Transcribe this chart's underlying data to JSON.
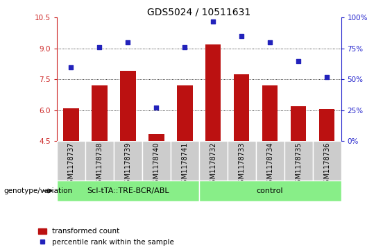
{
  "title": "GDS5024 / 10511631",
  "samples": [
    "GSM1178737",
    "GSM1178738",
    "GSM1178739",
    "GSM1178740",
    "GSM1178741",
    "GSM1178732",
    "GSM1178733",
    "GSM1178734",
    "GSM1178735",
    "GSM1178736"
  ],
  "transformed_count": [
    6.1,
    7.2,
    7.9,
    4.85,
    7.2,
    9.2,
    7.75,
    7.2,
    6.2,
    6.05
  ],
  "percentile_rank": [
    60,
    76,
    80,
    27,
    76,
    97,
    85,
    80,
    65,
    52
  ],
  "ylim_left": [
    4.5,
    10.5
  ],
  "ylim_right": [
    0,
    100
  ],
  "yticks_left": [
    4.5,
    6.0,
    7.5,
    9.0,
    10.5
  ],
  "yticks_right": [
    0,
    25,
    50,
    75,
    100
  ],
  "ytick_labels_right": [
    "0%",
    "25%",
    "50%",
    "75%",
    "100%"
  ],
  "hlines": [
    6.0,
    7.5,
    9.0
  ],
  "group1_label": "ScI-tTA::TRE-BCR/ABL",
  "group2_label": "control",
  "group1_count": 5,
  "group2_count": 5,
  "bar_color": "#bb1111",
  "dot_color": "#2222bb",
  "bar_width": 0.55,
  "legend_bar_label": "transformed count",
  "legend_dot_label": "percentile rank within the sample",
  "genotype_label": "genotype/variation",
  "group_bg": "#88ee88",
  "tick_bg": "#cccccc",
  "title_fontsize": 10,
  "tick_fontsize": 7.5,
  "label_fontsize": 7,
  "axis_left_color": "#cc2222",
  "axis_right_color": "#2222cc"
}
